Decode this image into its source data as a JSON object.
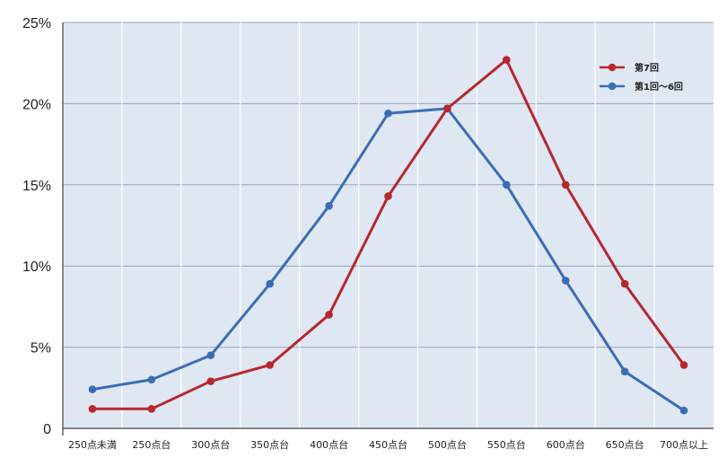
{
  "chart_data": {
    "type": "line",
    "title": "",
    "xlabel": "",
    "ylabel": "",
    "categories": [
      "250点未満",
      "250点台",
      "300点台",
      "350点台",
      "400点台",
      "450点台",
      "500点台",
      "550点台",
      "600点台",
      "650点台",
      "700点以上"
    ],
    "y_ticks": [
      "0",
      "5%",
      "10%",
      "15%",
      "20%",
      "25%"
    ],
    "ylim": [
      0,
      25
    ],
    "grid": true,
    "legend_position": "top-right",
    "series": [
      {
        "name": "第7回",
        "color": "#b5282e",
        "values": [
          1.2,
          1.2,
          2.9,
          3.9,
          7.0,
          14.3,
          19.7,
          22.7,
          15.0,
          8.9,
          3.9
        ]
      },
      {
        "name": "第1回〜6回",
        "color": "#3b6db3",
        "values": [
          2.4,
          3.0,
          4.5,
          8.9,
          13.7,
          19.4,
          19.7,
          15.0,
          9.1,
          3.5,
          1.1
        ]
      }
    ],
    "colors": {
      "plot_background": "#dfe7f3",
      "grid": "#9aa7b8",
      "axis": "#444444"
    }
  }
}
